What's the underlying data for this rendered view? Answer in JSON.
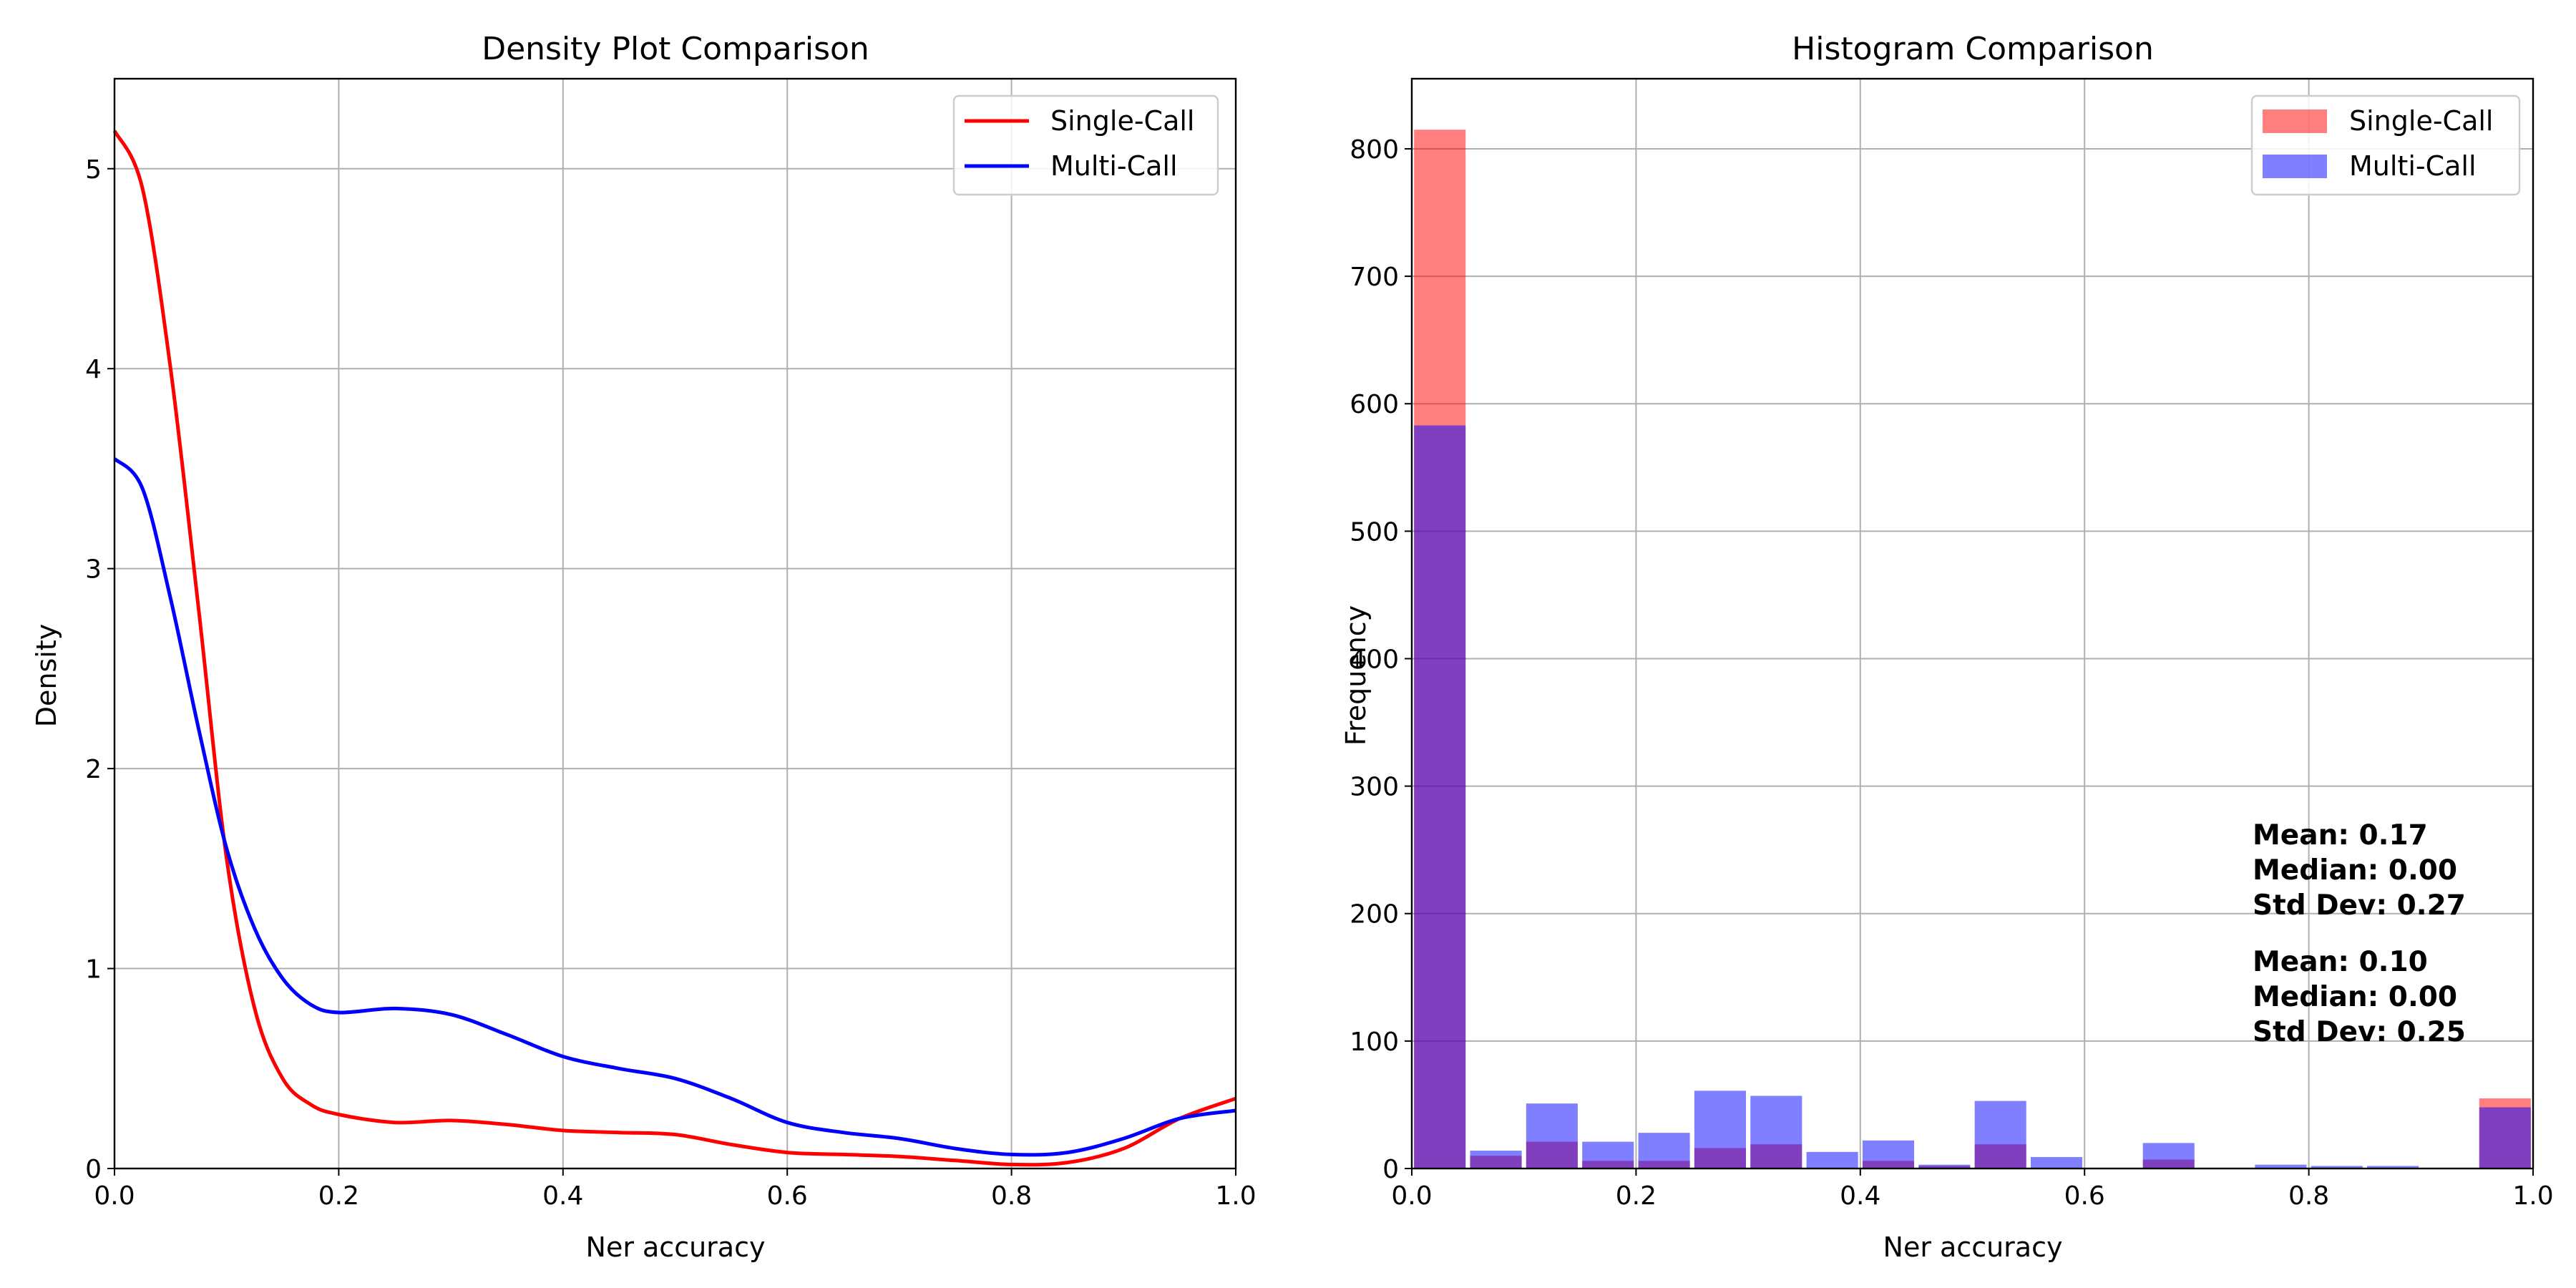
{
  "chart_data": [
    {
      "type": "line",
      "title": "Density Plot Comparison",
      "xlabel": "Ner accuracy",
      "ylabel": "Density",
      "xlim": [
        0,
        1
      ],
      "ylim": [
        0,
        5.45
      ],
      "xticks": [
        "0.0",
        "0.2",
        "0.4",
        "0.6",
        "0.8",
        "1.0"
      ],
      "yticks": [
        "0",
        "1",
        "2",
        "3",
        "4",
        "5"
      ],
      "grid": true,
      "legend": "top-right",
      "series": [
        {
          "name": "Single-Call",
          "color": "#ff0000",
          "x": [
            0,
            0.025,
            0.05,
            0.075,
            0.1,
            0.125,
            0.15,
            0.175,
            0.2,
            0.25,
            0.3,
            0.35,
            0.4,
            0.45,
            0.5,
            0.55,
            0.6,
            0.65,
            0.7,
            0.75,
            0.8,
            0.85,
            0.9,
            0.95,
            1.0
          ],
          "y": [
            5.19,
            4.9,
            4.0,
            2.8,
            1.55,
            0.8,
            0.45,
            0.32,
            0.27,
            0.23,
            0.24,
            0.22,
            0.19,
            0.18,
            0.17,
            0.12,
            0.08,
            0.07,
            0.06,
            0.04,
            0.02,
            0.03,
            0.1,
            0.25,
            0.35
          ]
        },
        {
          "name": "Multi-Call",
          "color": "#0000ff",
          "x": [
            0,
            0.025,
            0.05,
            0.075,
            0.1,
            0.125,
            0.15,
            0.175,
            0.2,
            0.25,
            0.3,
            0.35,
            0.4,
            0.45,
            0.5,
            0.55,
            0.6,
            0.65,
            0.7,
            0.75,
            0.8,
            0.85,
            0.9,
            0.95,
            1.0
          ],
          "y": [
            3.55,
            3.4,
            2.85,
            2.2,
            1.6,
            1.2,
            0.95,
            0.82,
            0.78,
            0.8,
            0.77,
            0.67,
            0.56,
            0.5,
            0.45,
            0.35,
            0.23,
            0.18,
            0.15,
            0.1,
            0.07,
            0.08,
            0.15,
            0.25,
            0.29
          ]
        }
      ]
    },
    {
      "type": "bar",
      "title": "Histogram Comparison",
      "xlabel": "Ner accuracy",
      "ylabel": "Frequency",
      "xlim": [
        0,
        1
      ],
      "ylim": [
        0,
        855
      ],
      "xticks": [
        "0.0",
        "0.2",
        "0.4",
        "0.6",
        "0.8",
        "1.0"
      ],
      "yticks": [
        "0",
        "100",
        "200",
        "300",
        "400",
        "500",
        "600",
        "700",
        "800"
      ],
      "grid": true,
      "legend": "top-right",
      "bin_edges": [
        0,
        0.05,
        0.1,
        0.15,
        0.2,
        0.25,
        0.3,
        0.35,
        0.4,
        0.45,
        0.5,
        0.55,
        0.6,
        0.65,
        0.7,
        0.75,
        0.8,
        0.85,
        0.9,
        0.95,
        1.0
      ],
      "series": [
        {
          "name": "Single-Call",
          "color": "#ff0000",
          "values": [
            815,
            10,
            21,
            6,
            6,
            16,
            19,
            0,
            6,
            2,
            19,
            0,
            0,
            7,
            0,
            0,
            0,
            0,
            0,
            55
          ]
        },
        {
          "name": "Multi-Call",
          "color": "#0000ff",
          "values": [
            583,
            14,
            51,
            21,
            28,
            61,
            57,
            13,
            22,
            3,
            53,
            9,
            0,
            20,
            0,
            3,
            2,
            2,
            0,
            48
          ]
        }
      ],
      "annotations": {
        "multi": [
          "Mean: 0.17",
          "Median: 0.00",
          "Std Dev: 0.27"
        ],
        "single": [
          "Mean: 0.10",
          "Median: 0.00",
          "Std Dev: 0.25"
        ]
      }
    }
  ]
}
